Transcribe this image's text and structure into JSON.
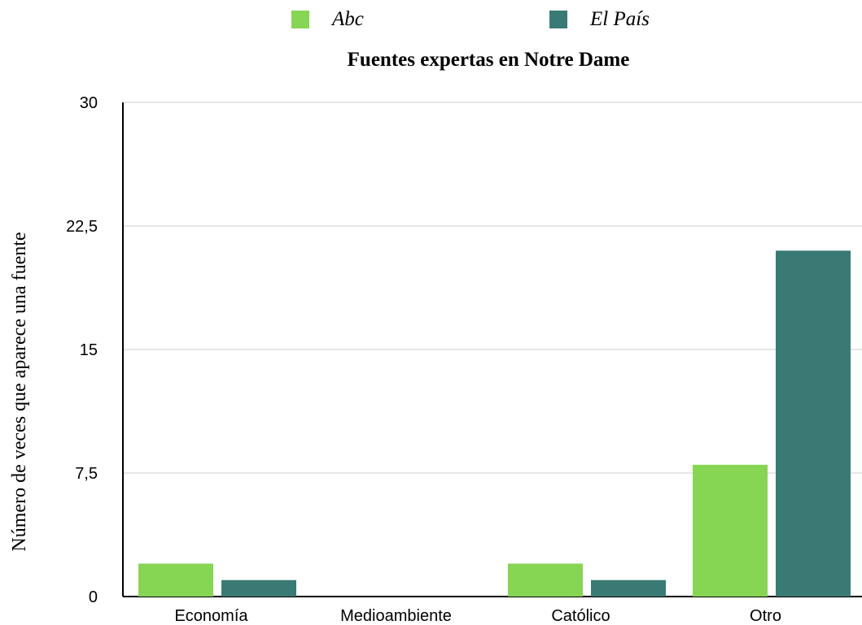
{
  "chart_data": {
    "type": "bar",
    "title": "Fuentes expertas en Notre Dame",
    "xlabel": "",
    "ylabel": "Número de veces que aparece una fuente",
    "categories": [
      "Economía",
      "Medioambiente",
      "Católico",
      "Otro"
    ],
    "series": [
      {
        "name": "Abc",
        "color": "#86d553",
        "values": [
          2,
          0,
          2,
          8
        ]
      },
      {
        "name": "El País",
        "color": "#3a7a74",
        "values": [
          1,
          0,
          1,
          21
        ]
      }
    ],
    "ylim": [
      0,
      30
    ],
    "yticks": [
      0,
      7.5,
      15,
      22.5,
      30
    ],
    "ytick_labels": [
      "0",
      "7,5",
      "15",
      "22,5",
      "30"
    ],
    "grid": true,
    "legend_position": "top"
  }
}
